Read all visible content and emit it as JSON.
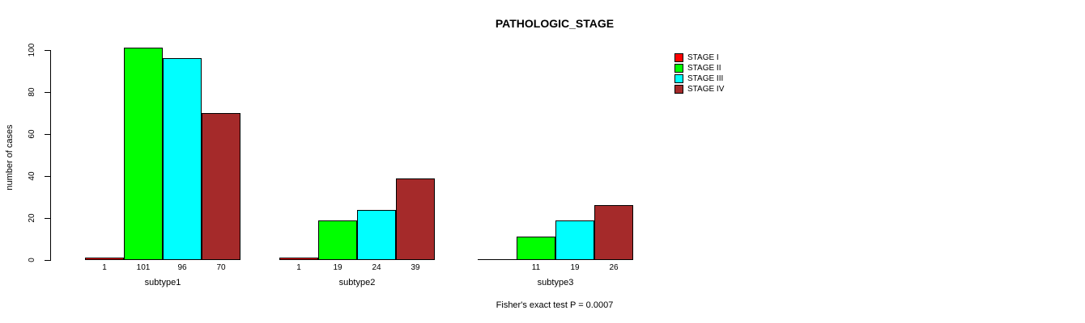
{
  "chart_data": {
    "type": "bar",
    "title": "PATHOLOGIC_STAGE",
    "xlabel": "",
    "ylabel": "number of cases",
    "ylim": [
      0,
      100
    ],
    "yticks": [
      0,
      20,
      40,
      60,
      80,
      100
    ],
    "grid": false,
    "legend_position": "top-right",
    "categories": [
      "subtype1",
      "subtype2",
      "subtype3"
    ],
    "series": [
      {
        "name": "STAGE I",
        "color": "#ff0000",
        "values": [
          1,
          1,
          0
        ]
      },
      {
        "name": "STAGE II",
        "color": "#00ff00",
        "values": [
          101,
          19,
          11
        ]
      },
      {
        "name": "STAGE III",
        "color": "#00ffff",
        "values": [
          96,
          24,
          19
        ]
      },
      {
        "name": "STAGE IV",
        "color": "#a52a2a",
        "values": [
          70,
          39,
          26
        ]
      }
    ],
    "bar_labels": [
      [
        "1",
        "101",
        "96",
        "70"
      ],
      [
        "1",
        "19",
        "24",
        "39"
      ],
      [
        "",
        "11",
        "19",
        "26"
      ]
    ],
    "annotation": "Fisher's exact test P = 0.0007"
  }
}
